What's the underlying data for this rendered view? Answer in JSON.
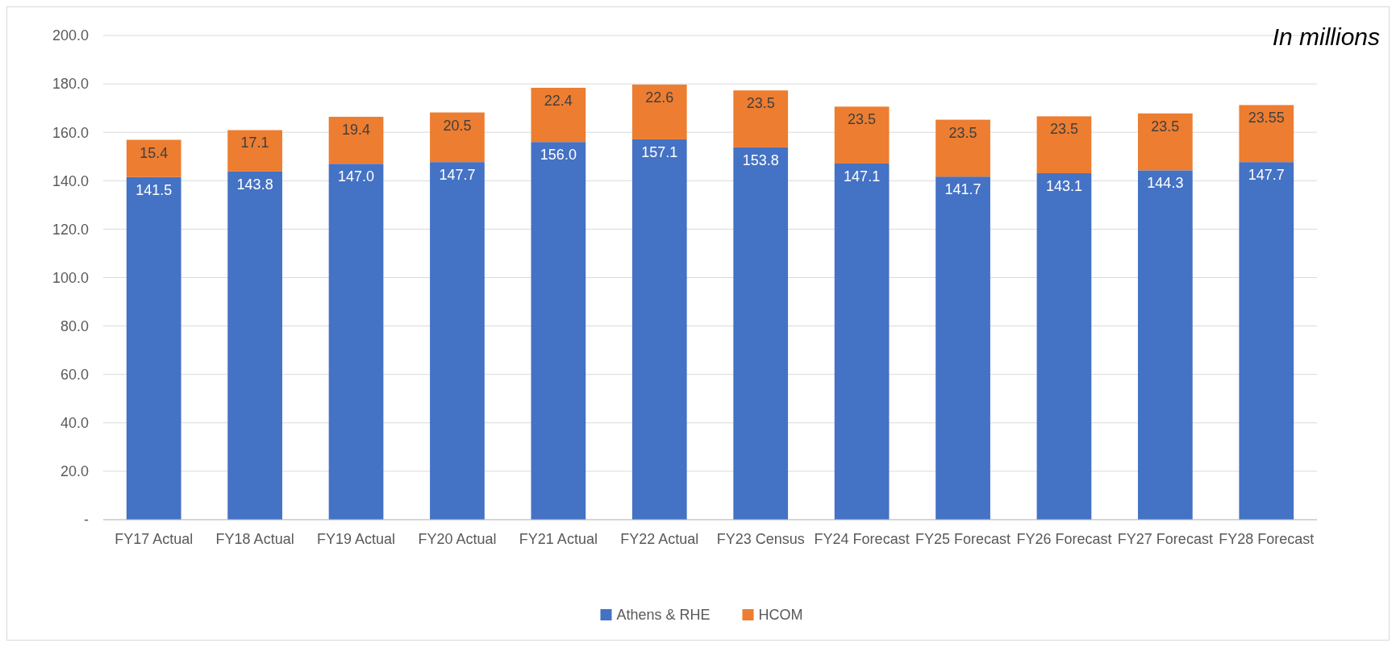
{
  "chart_data": {
    "type": "bar",
    "stacked": true,
    "annotations": [
      "In millions"
    ],
    "categories": [
      "FY17 Actual",
      "FY18 Actual",
      "FY19 Actual",
      "FY20 Actual",
      "FY21 Actual",
      "FY22 Actual",
      "FY23 Census",
      "FY24 Forecast",
      "FY25 Forecast",
      "FY26 Forecast",
      "FY27 Forecast",
      "FY28 Forecast"
    ],
    "series": [
      {
        "name": "Athens & RHE",
        "color": "#4472c4",
        "values": [
          141.5,
          143.8,
          147.0,
          147.7,
          156.0,
          157.1,
          153.8,
          147.1,
          141.7,
          143.1,
          144.3,
          147.7
        ],
        "value_labels": [
          "141.5",
          "143.8",
          "147.0",
          "147.7",
          "156.0",
          "157.1",
          "153.8",
          "147.1",
          "141.7",
          "143.1",
          "144.3",
          "147.7"
        ]
      },
      {
        "name": "HCOM",
        "color": "#ed7d31",
        "values": [
          15.4,
          17.1,
          19.4,
          20.5,
          22.4,
          22.6,
          23.5,
          23.5,
          23.5,
          23.5,
          23.5,
          23.55
        ],
        "value_labels": [
          "15.4",
          "17.1",
          "19.4",
          "20.5",
          "22.4",
          "22.6",
          "23.5",
          "23.5",
          "23.5",
          "23.5",
          "23.5",
          "23.55"
        ]
      }
    ],
    "ylim": [
      0,
      200
    ],
    "yticks": [
      {
        "value": 0,
        "label": "-"
      },
      {
        "value": 20,
        "label": "20.0"
      },
      {
        "value": 40,
        "label": "40.0"
      },
      {
        "value": 60,
        "label": "60.0"
      },
      {
        "value": 80,
        "label": "80.0"
      },
      {
        "value": 100,
        "label": "100.0"
      },
      {
        "value": 120,
        "label": "120.0"
      },
      {
        "value": 140,
        "label": "140.0"
      },
      {
        "value": 160,
        "label": "160.0"
      },
      {
        "value": 180,
        "label": "180.0"
      },
      {
        "value": 200,
        "label": "200.0"
      }
    ],
    "grid": "y",
    "legend": "bottom"
  }
}
